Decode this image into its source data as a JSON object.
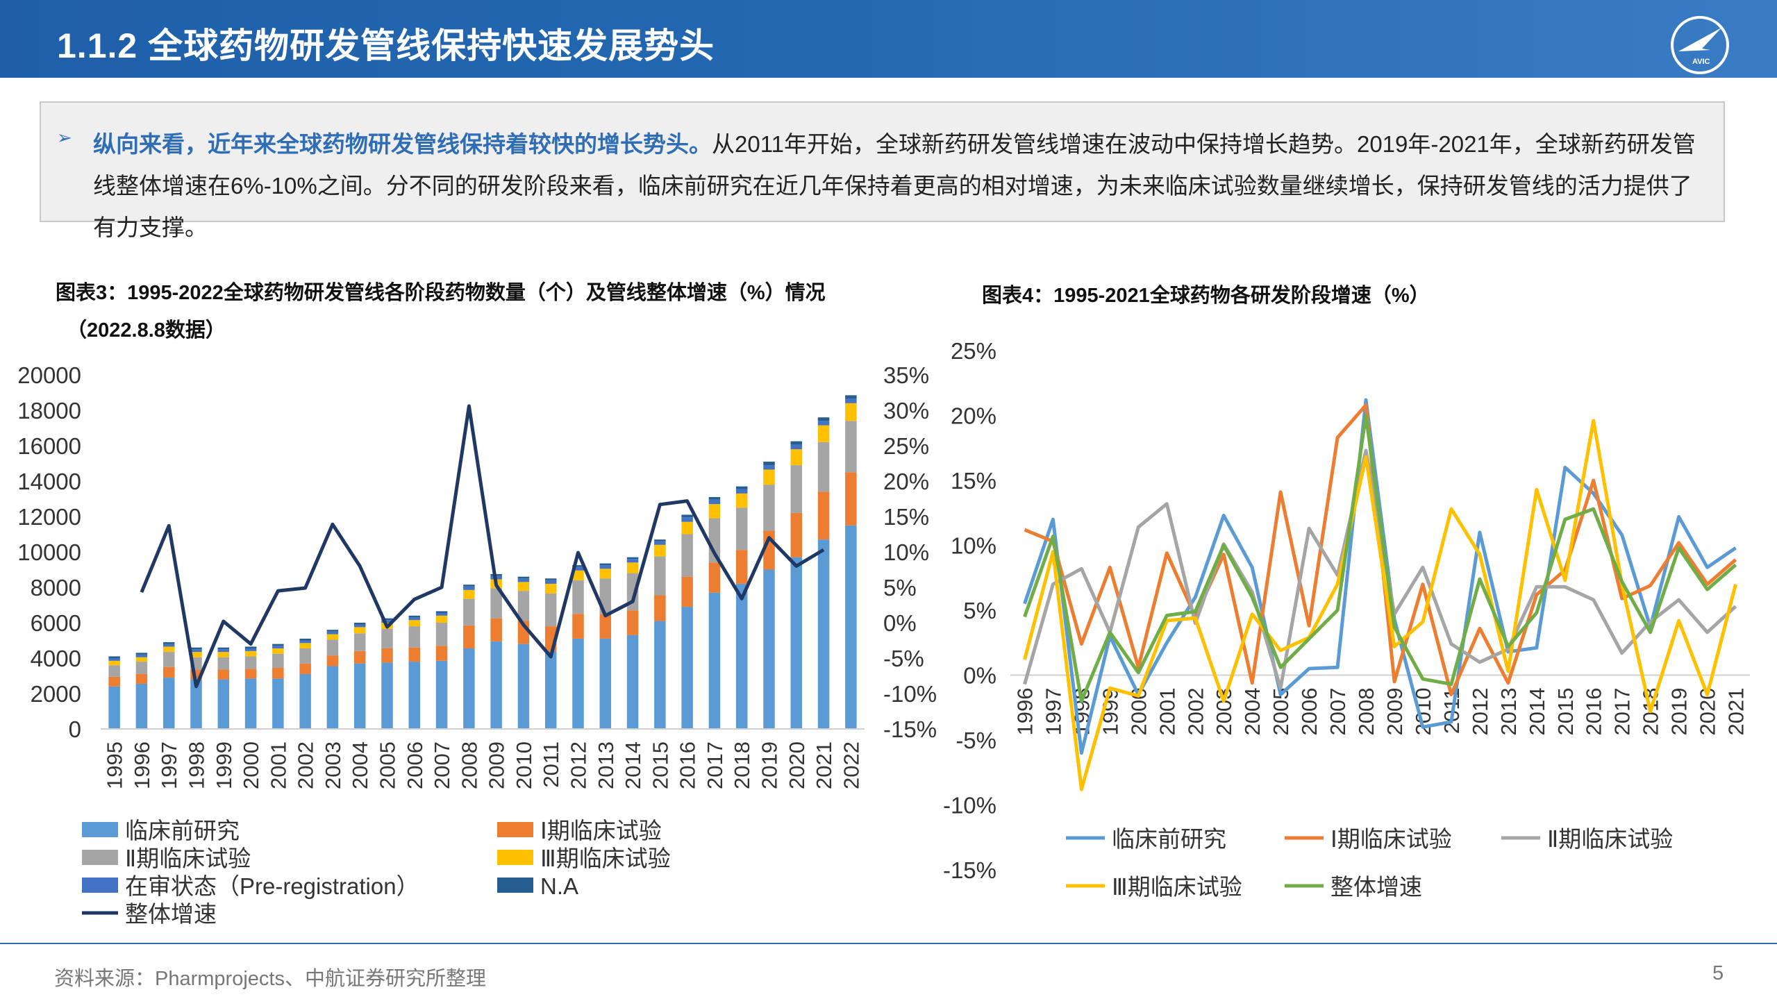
{
  "header": {
    "title": "1.1.2 全球药物研发管线保持快速发展势头",
    "logo_label": "AVIC"
  },
  "summary": {
    "bold": "纵向来看，近年来全球药物研发管线保持着较快的增长势头。",
    "text": "从2011年开始，全球新药研发管线增速在波动中保持增长趋势。2019年-2021年，全球新药研发管线整体增速在6%-10%之间。分不同的研发阶段来看，临床前研究在近几年保持着更高的相对增速，为未来临床试验数量继续增长，保持研发管线的活力提供了有力支撑。"
  },
  "chart1_title_line1": "图表3：1995-2022全球药物研发管线各阶段药物数量（个）及管线整体增速（%）情况",
  "chart1_title_line2": "（2022.8.8数据）",
  "chart2_title": "图表4：1995-2021全球药物各研发阶段增速（%）",
  "footer": {
    "source": "资料来源：Pharmprojects、中航证券研究所整理",
    "page": "5"
  },
  "colors": {
    "preclinical": "#5b9bd5",
    "phase1": "#ed7d31",
    "phase2": "#a5a5a5",
    "phase3": "#ffc000",
    "prereg": "#4472c4",
    "na": "#255e91",
    "overall_line": "#1f3864",
    "overall_green": "#70ad47"
  },
  "chart_data": [
    {
      "type": "bar",
      "stacked": true,
      "categories": [
        "1995",
        "1996",
        "1997",
        "1998",
        "1999",
        "2000",
        "2001",
        "2002",
        "2003",
        "2004",
        "2005",
        "2006",
        "2007",
        "2008",
        "2009",
        "2010",
        "2011",
        "2012",
        "2013",
        "2014",
        "2015",
        "2016",
        "2017",
        "2018",
        "2019",
        "2020",
        "2021",
        "2022"
      ],
      "series": [
        {
          "name": "临床前研究",
          "values": [
            2400,
            2550,
            2900,
            2800,
            2800,
            2850,
            2850,
            3100,
            3550,
            3700,
            3750,
            3800,
            3850,
            4550,
            4950,
            4800,
            4400,
            5100,
            5100,
            5300,
            6100,
            6900,
            7700,
            8200,
            9000,
            9700,
            10700,
            11500
          ]
        },
        {
          "name": "Ⅰ期临床试验",
          "values": [
            550,
            550,
            600,
            550,
            550,
            550,
            600,
            600,
            600,
            700,
            800,
            800,
            850,
            1300,
            1300,
            1300,
            1400,
            1400,
            1400,
            1400,
            1450,
            1700,
            1700,
            1900,
            2200,
            2500,
            2700,
            3000
          ]
        },
        {
          "name": "Ⅱ期临床试验",
          "values": [
            650,
            700,
            850,
            700,
            700,
            700,
            800,
            850,
            900,
            1000,
            1100,
            1200,
            1300,
            1500,
            1700,
            1700,
            1850,
            1900,
            2000,
            2100,
            2200,
            2400,
            2500,
            2400,
            2600,
            2700,
            2800,
            2900
          ]
        },
        {
          "name": "Ⅲ期临床试验",
          "values": [
            250,
            250,
            300,
            300,
            300,
            300,
            300,
            300,
            300,
            350,
            350,
            350,
            400,
            500,
            500,
            500,
            550,
            550,
            550,
            600,
            650,
            700,
            800,
            800,
            850,
            900,
            950,
            1000
          ]
        },
        {
          "name": "在审状态（Pre-registration）",
          "values": [
            150,
            150,
            150,
            150,
            150,
            150,
            150,
            150,
            150,
            150,
            150,
            150,
            150,
            200,
            200,
            200,
            200,
            200,
            200,
            200,
            200,
            250,
            250,
            250,
            250,
            250,
            250,
            250
          ]
        },
        {
          "name": "N.A",
          "values": [
            100,
            100,
            100,
            100,
            100,
            100,
            100,
            100,
            100,
            100,
            100,
            100,
            100,
            100,
            100,
            100,
            100,
            100,
            100,
            100,
            100,
            150,
            150,
            150,
            200,
            200,
            200,
            200
          ]
        }
      ],
      "line_series": {
        "name": "整体增速",
        "axis": "right",
        "x": [
          "1996",
          "1997",
          "1998",
          "1999",
          "2000",
          "2001",
          "2002",
          "2003",
          "2004",
          "2005",
          "2006",
          "2007",
          "2008",
          "2009",
          "2010",
          "2011",
          "2012",
          "2013",
          "2014",
          "2015",
          "2016",
          "2017",
          "2018",
          "2019",
          "2020",
          "2021"
        ],
        "values": [
          4.3,
          13.7,
          -9.0,
          0.2,
          -3.0,
          4.5,
          4.9,
          13.9,
          8.0,
          -0.6,
          3.3,
          5.0,
          30.6,
          5.3,
          -0.3,
          -4.8,
          9.9,
          1.0,
          3.0,
          16.7,
          17.2,
          9.8,
          3.4,
          12.0,
          8.0,
          10.3
        ]
      },
      "ylim": [
        0,
        20000
      ],
      "y_ticks": [
        "0",
        "2000",
        "4000",
        "6000",
        "8000",
        "10000",
        "12000",
        "14000",
        "16000",
        "18000",
        "20000"
      ],
      "y2lim": [
        -15,
        35
      ],
      "y2_ticks": [
        "-15%",
        "-10%",
        "-5%",
        "0%",
        "5%",
        "10%",
        "15%",
        "20%",
        "25%",
        "30%",
        "35%"
      ],
      "legend": [
        "临床前研究",
        "Ⅰ期临床试验",
        "Ⅱ期临床试验",
        "Ⅲ期临床试验",
        "在审状态（Pre-registration）",
        "N.A",
        "整体增速"
      ]
    },
    {
      "type": "line",
      "x": [
        "1996",
        "1997",
        "1998",
        "1999",
        "2000",
        "2001",
        "2002",
        "2003",
        "2004",
        "2005",
        "2006",
        "2007",
        "2008",
        "2009",
        "2010",
        "2011",
        "2012",
        "2013",
        "2014",
        "2015",
        "2016",
        "2017",
        "2018",
        "2019",
        "2020",
        "2021"
      ],
      "series": [
        {
          "name": "临床前研究",
          "values": [
            5.5,
            12,
            -6,
            3,
            -1.5,
            2.5,
            6,
            12.3,
            8.3,
            -1.5,
            0.5,
            0.6,
            21.2,
            4.3,
            -4,
            -3.6,
            11,
            1.8,
            2.1,
            16,
            14,
            10.8,
            3.7,
            12.2,
            8.3,
            9.8
          ]
        },
        {
          "name": "Ⅰ期临床试验",
          "values": [
            11.2,
            10.3,
            2.4,
            8.3,
            0.6,
            9.4,
            4.5,
            9.3,
            -0.6,
            14.1,
            3.8,
            18.3,
            20.8,
            -0.5,
            7,
            -1.5,
            3.6,
            -0.6,
            6.2,
            8.1,
            15,
            5.9,
            6.9,
            10.2,
            7,
            8.9
          ]
        },
        {
          "name": "Ⅱ期临床试验",
          "values": [
            -0.7,
            7,
            8.2,
            3.3,
            11.4,
            13.2,
            4,
            10.1,
            6.4,
            -1,
            11.3,
            7.7,
            17.3,
            4.7,
            8.3,
            2.4,
            1,
            2,
            6.8,
            6.8,
            5.8,
            1.7,
            4.1,
            5.8,
            3.3,
            5.3
          ]
        },
        {
          "name": "Ⅲ期临床试验",
          "values": [
            1.2,
            9.5,
            -8.8,
            -1,
            -1.6,
            4.2,
            4.4,
            -2,
            4.7,
            1.9,
            2.9,
            7,
            16.8,
            2.2,
            4.1,
            12.8,
            9.3,
            0.3,
            14.3,
            7.3,
            19.6,
            7,
            -2.8,
            4.2,
            -1.5,
            7
          ]
        },
        {
          "name": "整体增速",
          "values": [
            4.5,
            10.7,
            -2,
            3.3,
            0.2,
            4.6,
            4.9,
            10,
            6,
            0.6,
            2.8,
            5,
            20,
            3.7,
            -0.3,
            -0.7,
            7.4,
            2.2,
            4.8,
            12,
            12.8,
            7.2,
            3.3,
            9.8,
            6.6,
            8.5
          ]
        }
      ],
      "ylim": [
        -15,
        25
      ],
      "y_ticks": [
        "-15%",
        "-10%",
        "-5%",
        "0%",
        "5%",
        "10%",
        "15%",
        "20%",
        "25%"
      ],
      "legend": [
        "临床前研究",
        "Ⅰ期临床试验",
        "Ⅱ期临床试验",
        "Ⅲ期临床试验",
        "整体增速"
      ]
    }
  ]
}
